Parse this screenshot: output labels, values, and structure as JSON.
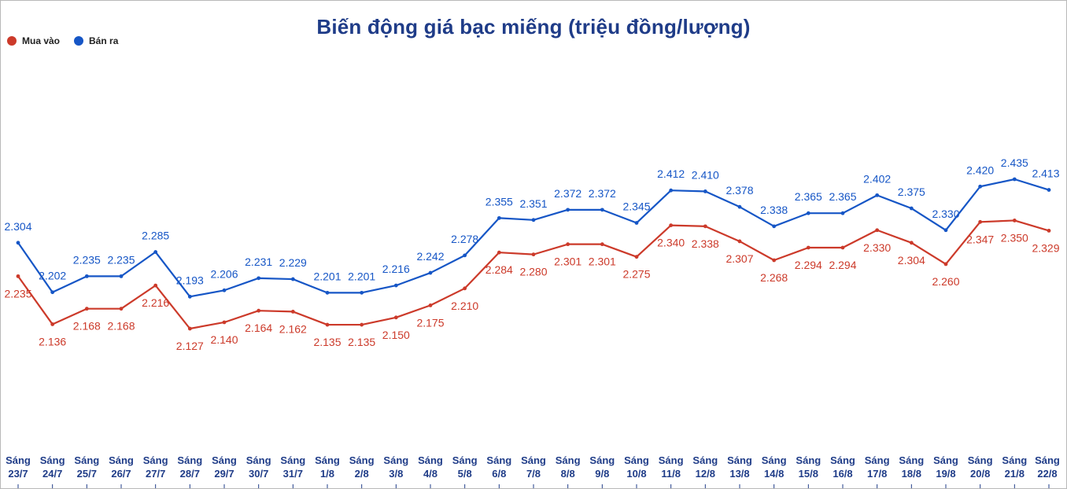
{
  "chart_data": {
    "type": "line",
    "title": "Biến động giá bạc miếng (triệu đồng/lượng)",
    "categories": [
      [
        "Sáng",
        "23/7"
      ],
      [
        "Sáng",
        "24/7"
      ],
      [
        "Sáng",
        "25/7"
      ],
      [
        "Sáng",
        "26/7"
      ],
      [
        "Sáng",
        "27/7"
      ],
      [
        "Sáng",
        "28/7"
      ],
      [
        "Sáng",
        "29/7"
      ],
      [
        "Sáng",
        "30/7"
      ],
      [
        "Sáng",
        "31/7"
      ],
      [
        "Sáng",
        "1/8"
      ],
      [
        "Sáng",
        "2/8"
      ],
      [
        "Sáng",
        "3/8"
      ],
      [
        "Sáng",
        "4/8"
      ],
      [
        "Sáng",
        "5/8"
      ],
      [
        "Sáng",
        "6/8"
      ],
      [
        "Sáng",
        "7/8"
      ],
      [
        "Sáng",
        "8/8"
      ],
      [
        "Sáng",
        "9/8"
      ],
      [
        "Sáng",
        "10/8"
      ],
      [
        "Sáng",
        "11/8"
      ],
      [
        "Sáng",
        "12/8"
      ],
      [
        "Sáng",
        "13/8"
      ],
      [
        "Sáng",
        "14/8"
      ],
      [
        "Sáng",
        "15/8"
      ],
      [
        "Sáng",
        "16/8"
      ],
      [
        "Sáng",
        "17/8"
      ],
      [
        "Sáng",
        "18/8"
      ],
      [
        "Sáng",
        "19/8"
      ],
      [
        "Sáng",
        "20/8"
      ],
      [
        "Sáng",
        "21/8"
      ],
      [
        "Sáng",
        "22/8"
      ]
    ],
    "series": [
      {
        "name": "Mua vào",
        "color": "#cc3a2a",
        "values": [
          2.235,
          2.136,
          2.168,
          2.168,
          2.216,
          2.127,
          2.14,
          2.164,
          2.162,
          2.135,
          2.135,
          2.15,
          2.175,
          2.21,
          2.284,
          2.28,
          2.301,
          2.301,
          2.275,
          2.34,
          2.338,
          2.307,
          2.268,
          2.294,
          2.294,
          2.33,
          2.304,
          2.26,
          2.347,
          2.35,
          2.329
        ]
      },
      {
        "name": "Bán ra",
        "color": "#1656c6",
        "values": [
          2.304,
          2.202,
          2.235,
          2.235,
          2.285,
          2.193,
          2.206,
          2.231,
          2.229,
          2.201,
          2.201,
          2.216,
          2.242,
          2.278,
          2.355,
          2.351,
          2.372,
          2.372,
          2.345,
          2.412,
          2.41,
          2.378,
          2.338,
          2.365,
          2.365,
          2.402,
          2.375,
          2.33,
          2.42,
          2.435,
          2.413
        ]
      }
    ],
    "legend_position": "top-left",
    "grid": false
  }
}
